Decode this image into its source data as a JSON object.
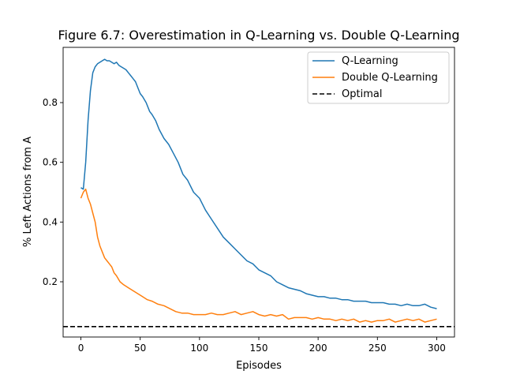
{
  "chart_data": {
    "type": "line",
    "title": "Figure 6.7: Overestimation in Q-Learning vs. Double Q-Learning",
    "xlabel": "Episodes",
    "ylabel": "% Left Actions from A",
    "xlim": [
      -15,
      315
    ],
    "ylim": [
      0.015,
      0.985
    ],
    "xticks": [
      0,
      50,
      100,
      150,
      200,
      250,
      300
    ],
    "xtick_labels": [
      "0",
      "50",
      "100",
      "150",
      "200",
      "250",
      "300"
    ],
    "yticks": [
      0.2,
      0.4,
      0.6,
      0.8
    ],
    "ytick_labels": [
      "0.2",
      "0.4",
      "0.6",
      "0.8"
    ],
    "grid": false,
    "legend_position": "top-right",
    "series": [
      {
        "name": "Q-Learning",
        "color": "#1f77b4",
        "style": "solid",
        "x": [
          0,
          2,
          4,
          6,
          8,
          10,
          12,
          14,
          16,
          18,
          20,
          22,
          24,
          26,
          28,
          30,
          32,
          34,
          36,
          38,
          40,
          42,
          44,
          46,
          48,
          50,
          52,
          55,
          58,
          60,
          63,
          66,
          70,
          74,
          78,
          82,
          86,
          90,
          95,
          100,
          105,
          110,
          115,
          120,
          125,
          130,
          135,
          140,
          145,
          150,
          155,
          160,
          165,
          170,
          175,
          180,
          185,
          190,
          195,
          200,
          205,
          210,
          215,
          220,
          225,
          230,
          235,
          240,
          245,
          250,
          255,
          260,
          265,
          270,
          275,
          280,
          285,
          290,
          295,
          300
        ],
        "y": [
          0.515,
          0.51,
          0.6,
          0.74,
          0.84,
          0.9,
          0.92,
          0.93,
          0.935,
          0.94,
          0.945,
          0.94,
          0.94,
          0.935,
          0.93,
          0.935,
          0.925,
          0.92,
          0.915,
          0.91,
          0.9,
          0.89,
          0.88,
          0.87,
          0.85,
          0.83,
          0.82,
          0.8,
          0.77,
          0.76,
          0.74,
          0.71,
          0.68,
          0.66,
          0.63,
          0.6,
          0.56,
          0.54,
          0.5,
          0.48,
          0.44,
          0.41,
          0.38,
          0.35,
          0.33,
          0.31,
          0.29,
          0.27,
          0.26,
          0.24,
          0.23,
          0.22,
          0.2,
          0.19,
          0.18,
          0.175,
          0.17,
          0.16,
          0.155,
          0.15,
          0.15,
          0.145,
          0.145,
          0.14,
          0.14,
          0.135,
          0.135,
          0.135,
          0.13,
          0.13,
          0.13,
          0.125,
          0.125,
          0.12,
          0.125,
          0.12,
          0.12,
          0.125,
          0.115,
          0.11
        ]
      },
      {
        "name": "Double Q-Learning",
        "color": "#ff7f0e",
        "style": "solid",
        "x": [
          0,
          2,
          4,
          6,
          8,
          10,
          12,
          14,
          16,
          18,
          20,
          22,
          24,
          26,
          28,
          30,
          33,
          36,
          40,
          44,
          48,
          52,
          56,
          60,
          65,
          70,
          75,
          80,
          85,
          90,
          95,
          100,
          105,
          110,
          115,
          120,
          125,
          130,
          135,
          140,
          145,
          150,
          155,
          160,
          165,
          170,
          175,
          180,
          185,
          190,
          195,
          200,
          205,
          210,
          215,
          220,
          225,
          230,
          235,
          240,
          245,
          250,
          255,
          260,
          265,
          270,
          275,
          280,
          285,
          290,
          295,
          300
        ],
        "y": [
          0.48,
          0.5,
          0.51,
          0.48,
          0.46,
          0.43,
          0.4,
          0.35,
          0.32,
          0.3,
          0.28,
          0.27,
          0.26,
          0.25,
          0.23,
          0.22,
          0.2,
          0.19,
          0.18,
          0.17,
          0.16,
          0.15,
          0.14,
          0.135,
          0.125,
          0.12,
          0.11,
          0.1,
          0.095,
          0.095,
          0.09,
          0.09,
          0.09,
          0.095,
          0.09,
          0.09,
          0.095,
          0.1,
          0.09,
          0.095,
          0.1,
          0.09,
          0.085,
          0.09,
          0.085,
          0.09,
          0.075,
          0.08,
          0.08,
          0.08,
          0.075,
          0.08,
          0.075,
          0.075,
          0.07,
          0.075,
          0.07,
          0.075,
          0.065,
          0.07,
          0.065,
          0.07,
          0.07,
          0.075,
          0.065,
          0.07,
          0.075,
          0.07,
          0.075,
          0.065,
          0.07,
          0.075
        ]
      },
      {
        "name": "Optimal",
        "color": "#000000",
        "style": "dashed",
        "x": [
          -15,
          315
        ],
        "y": [
          0.05,
          0.05
        ]
      }
    ]
  }
}
